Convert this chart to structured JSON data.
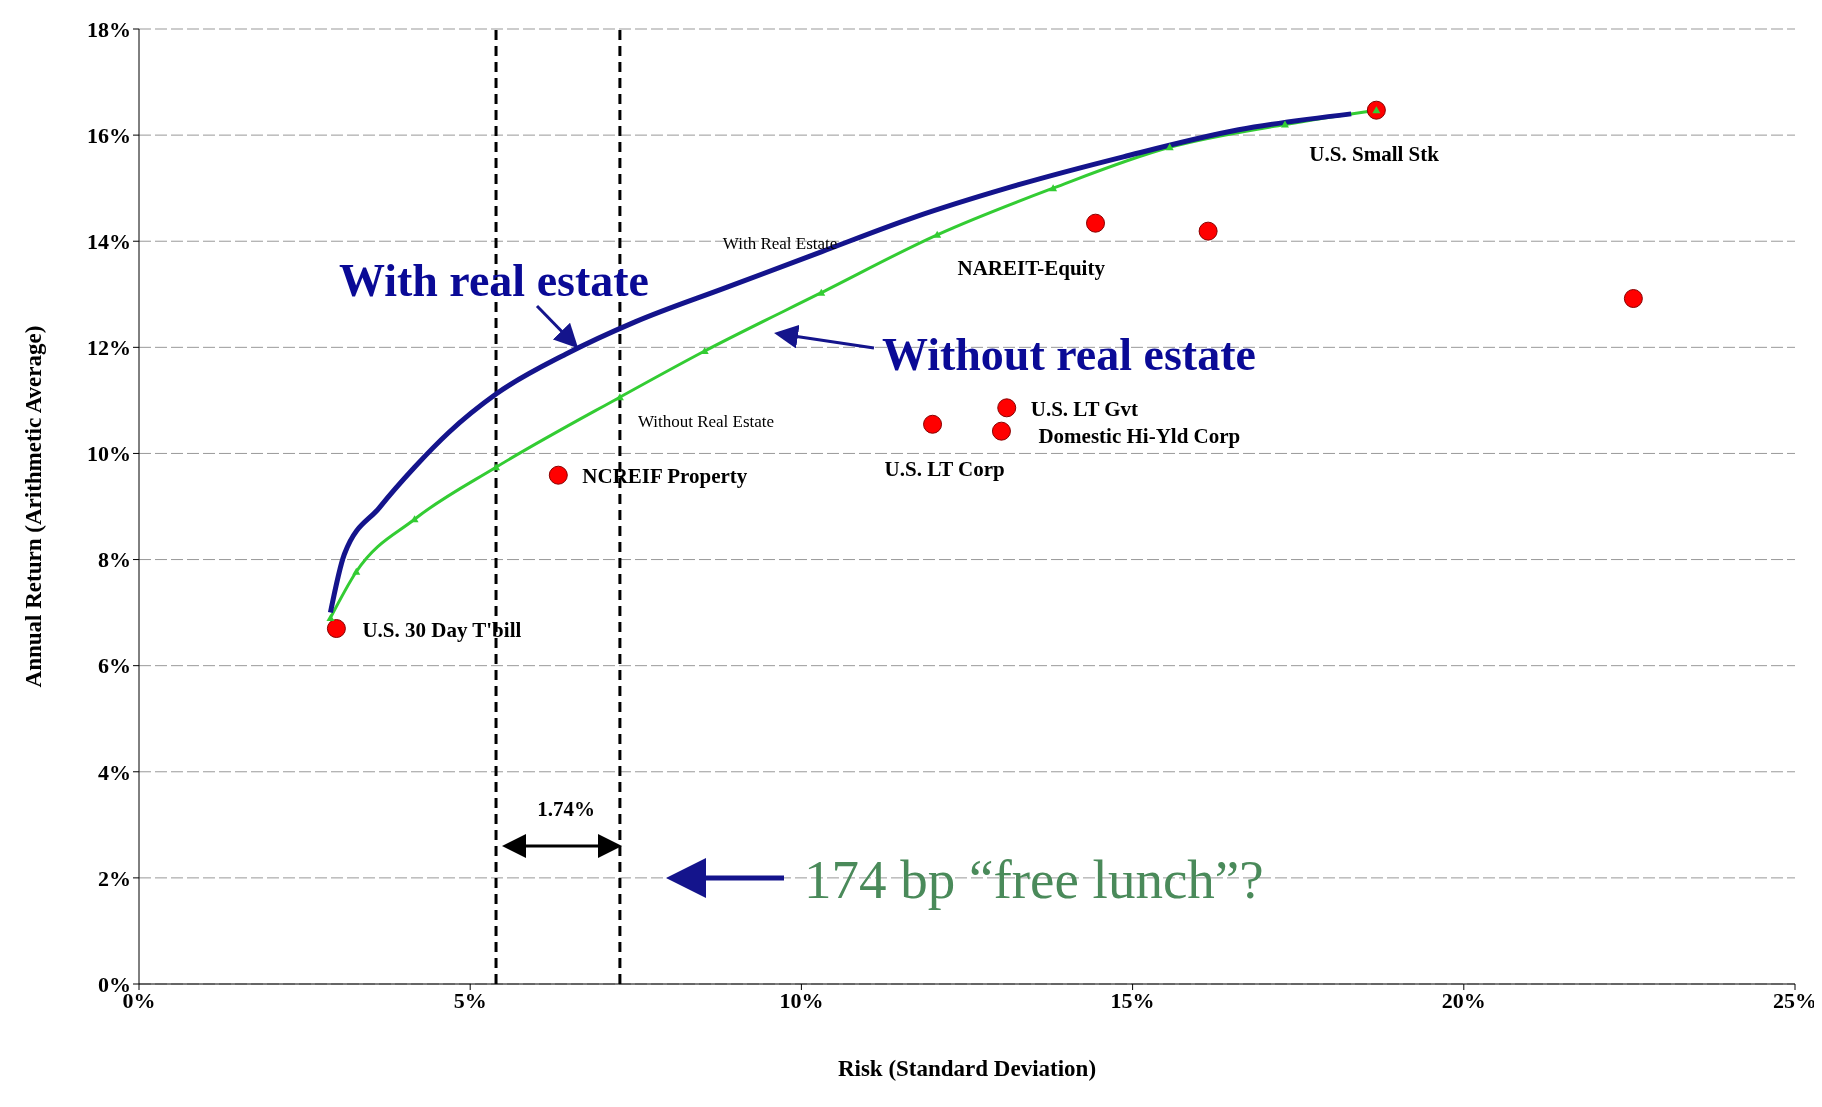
{
  "chart_data": {
    "type": "line",
    "xlabel": "Risk (Standard Deviation)",
    "ylabel": "Annual Return (Arithmetic Average)",
    "xlim": [
      0,
      25
    ],
    "xticks": [
      {
        "value": 0,
        "label": "0%"
      },
      {
        "value": 5,
        "label": "5%"
      },
      {
        "value": 10,
        "label": "10%"
      },
      {
        "value": 15,
        "label": "15%"
      },
      {
        "value": 20,
        "label": "20%"
      },
      {
        "value": 25,
        "label": "25%"
      }
    ],
    "ylim": [
      0,
      18
    ],
    "yticks": [
      {
        "value": 0,
        "label": "0%"
      },
      {
        "value": 2,
        "label": "2%"
      },
      {
        "value": 4,
        "label": "4%"
      },
      {
        "value": 6,
        "label": "6%"
      },
      {
        "value": 8,
        "label": "8%"
      },
      {
        "value": 10,
        "label": "10%"
      },
      {
        "value": 12,
        "label": "12%"
      },
      {
        "value": 14,
        "label": "14%"
      },
      {
        "value": 16,
        "label": "16%"
      },
      {
        "value": 18,
        "label": "18%"
      }
    ],
    "grid": "y",
    "legend": false,
    "series": [
      {
        "name": "With Real Estate",
        "type": "line",
        "color": "#14148c",
        "marker": "none",
        "x": [
          2.89,
          3.1,
          3.63,
          4.16,
          4.68,
          5.39,
          6.44,
          7.49,
          8.89,
          10.3,
          11.7,
          13.1,
          14.86,
          16.6,
          18.3
        ],
        "values": [
          7.0,
          8.1,
          8.98,
          9.74,
          10.4,
          11.12,
          11.87,
          12.48,
          13.14,
          13.8,
          14.45,
          15.0,
          15.59,
          16.1,
          16.4
        ]
      },
      {
        "name": "Without Real Estate",
        "type": "line",
        "color": "#33cc33",
        "marker": "triangle",
        "x": [
          2.89,
          3.28,
          4.16,
          5.39,
          7.26,
          8.54,
          10.3,
          12.05,
          13.8,
          15.56,
          17.3,
          18.68
        ],
        "values": [
          6.9,
          7.77,
          8.76,
          9.74,
          11.06,
          11.93,
          13.03,
          14.12,
          15.0,
          15.77,
          16.2,
          16.47
        ]
      },
      {
        "type": "scatter",
        "color": "#ff0000",
        "marker": "circle",
        "x": [
          2.98,
          6.33,
          11.98,
          13.1,
          13.02,
          14.44,
          16.14,
          22.56,
          18.68
        ],
        "values": [
          6.7,
          9.59,
          10.55,
          10.86,
          10.42,
          14.34,
          14.19,
          12.92,
          16.47
        ]
      }
    ],
    "ref_lines": [
      {
        "axis": "x",
        "value": 5.39,
        "color": "#000000",
        "line_style": "dashed"
      },
      {
        "axis": "x",
        "value": 7.26,
        "color": "#000000",
        "line_style": "dashed"
      }
    ],
    "annotations": [
      {
        "text": "U.S. 30 Day T'bill",
        "x": 2.98,
        "y": 6.7
      },
      {
        "text": "NCREIF Property",
        "x": 6.33,
        "y": 9.59
      },
      {
        "text": "U.S. LT Corp",
        "x": 11.98,
        "y": 10.55
      },
      {
        "text": "U.S. LT Gvt",
        "x": 13.1,
        "y": 10.86
      },
      {
        "text": "Domestic Hi-Yld Corp",
        "x": 13.02,
        "y": 10.42
      },
      {
        "text": "NAREIT-Equity",
        "x": 14.44,
        "y": 14.34
      },
      {
        "text": "U.S. Small Stk",
        "x": 18.68,
        "y": 16.47
      },
      "With real estate",
      "Without real estate",
      "1.74%",
      "174 bp “free lunch”?"
    ]
  }
}
